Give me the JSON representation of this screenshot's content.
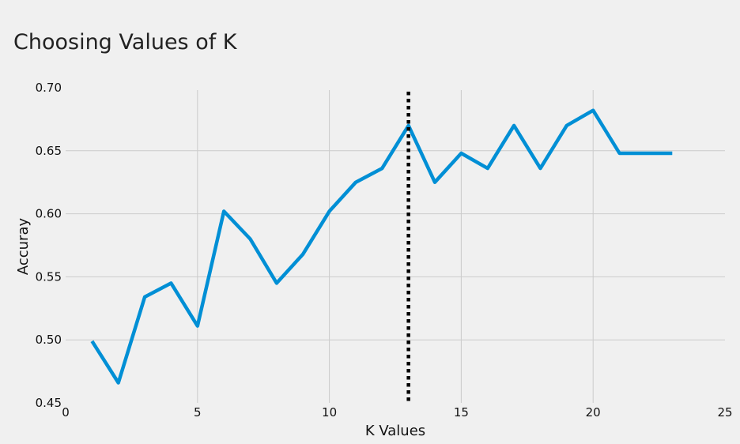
{
  "colors": {
    "background": "#f0f0f0",
    "series": "#008fd5",
    "marker": "#000000",
    "grid": "#cbcbcb"
  },
  "chart_data": {
    "type": "line",
    "title": "Choosing Values of K",
    "xlabel": "K Values",
    "ylabel": "Accuray",
    "xlim": [
      0,
      25
    ],
    "ylim": [
      0.45,
      0.7
    ],
    "xticks": [
      "0",
      "5",
      "10",
      "15",
      "20",
      "25"
    ],
    "yticks": [
      "0.45",
      "0.50",
      "0.55",
      "0.60",
      "0.65",
      "0.70"
    ],
    "grid": true,
    "series": [
      {
        "x": [
          1,
          2,
          3,
          4,
          5,
          6,
          7,
          8,
          9,
          10,
          11,
          12,
          13,
          14,
          15,
          16,
          17,
          18,
          19,
          20,
          21,
          22,
          23
        ],
        "y": [
          0.499,
          0.466,
          0.534,
          0.545,
          0.511,
          0.602,
          0.58,
          0.545,
          0.568,
          0.602,
          0.625,
          0.636,
          0.67,
          0.625,
          0.648,
          0.636,
          0.67,
          0.636,
          0.67,
          0.682,
          0.648,
          0.648,
          0.648
        ]
      }
    ],
    "vline": {
      "x": 13,
      "style": "dotted"
    }
  }
}
